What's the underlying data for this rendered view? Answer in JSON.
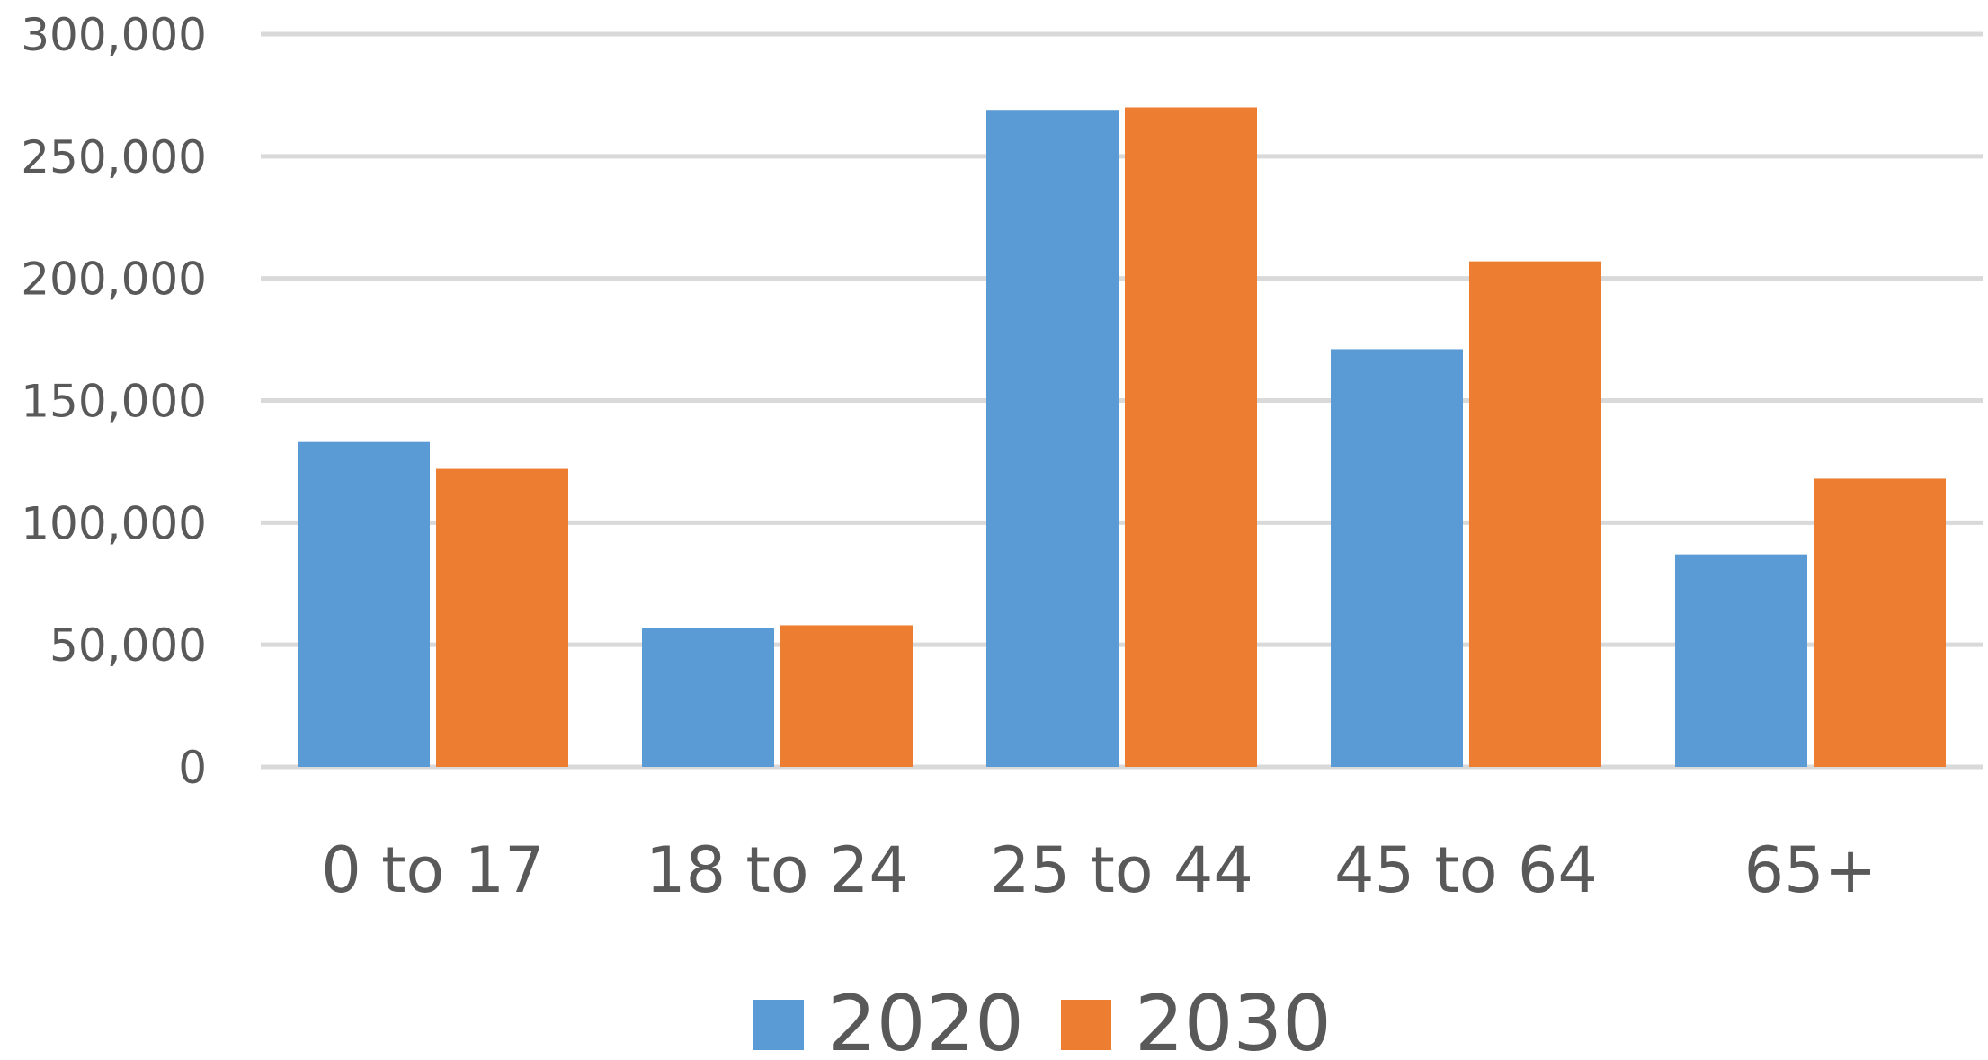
{
  "chart_data": {
    "type": "bar",
    "title": "",
    "xlabel": "",
    "ylabel": "",
    "categories": [
      "0 to 17",
      "18 to 24",
      "25 to 44",
      "45 to 64",
      "65+"
    ],
    "series": [
      {
        "name": "2020",
        "color": "#5b9bd5",
        "values": [
          133000,
          57000,
          269000,
          171000,
          87000
        ]
      },
      {
        "name": "2030",
        "color": "#ed7d31",
        "values": [
          122000,
          58000,
          270000,
          207000,
          118000
        ]
      }
    ],
    "ylim": [
      0,
      300000
    ],
    "yticks": [
      0,
      50000,
      100000,
      150000,
      200000,
      250000,
      300000
    ],
    "ytick_labels": [
      "0",
      "50,000",
      "100,000",
      "150,000",
      "200,000",
      "250,000",
      "300,000"
    ],
    "grid": true,
    "legend_position": "bottom"
  }
}
